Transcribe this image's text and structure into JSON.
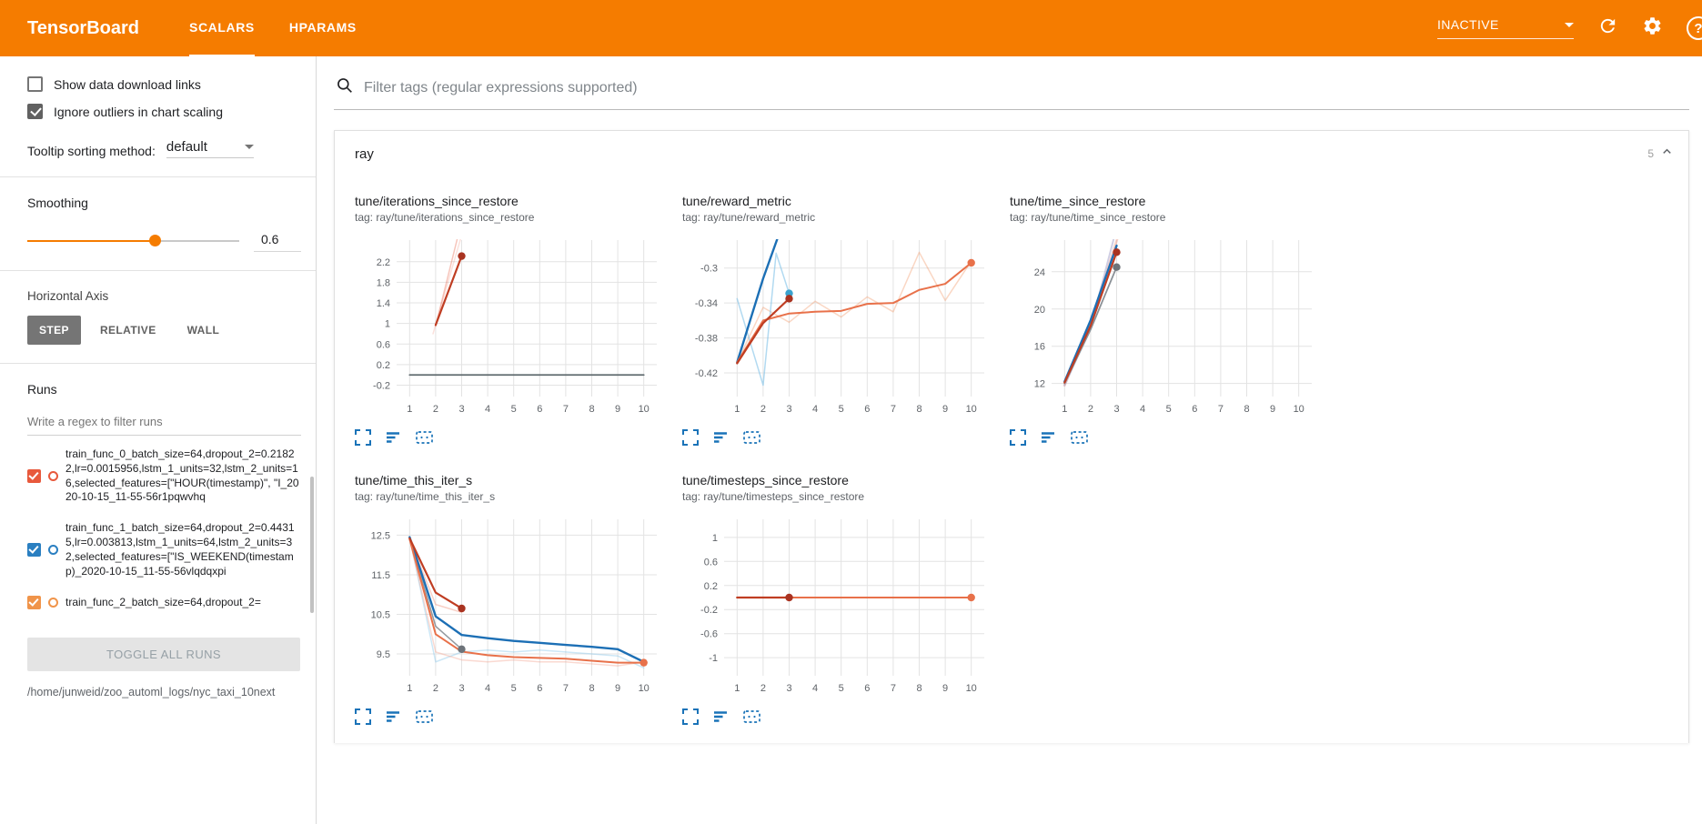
{
  "header": {
    "title": "TensorBoard",
    "tabs": [
      {
        "label": "SCALARS",
        "active": true
      },
      {
        "label": "HPARAMS",
        "active": false
      }
    ],
    "status": "INACTIVE",
    "accent_color": "#f57c00"
  },
  "icons": {
    "search": "magnifier",
    "refresh": "circular-arrow",
    "settings": "gear",
    "help": "question-circle",
    "expand": "fullscreen-corners",
    "run_selector": "three-lines",
    "fit_domain": "dashed-box",
    "collapse": "chevron-up"
  },
  "sidebar": {
    "checkboxes": [
      {
        "label": "Show data download links",
        "checked": false
      },
      {
        "label": "Ignore outliers in chart scaling",
        "checked": true
      }
    ],
    "tooltip_sort": {
      "label": "Tooltip sorting method:",
      "value": "default"
    },
    "smoothing": {
      "label": "Smoothing",
      "value": "0.6",
      "percent": 60
    },
    "horizontal_axis": {
      "label": "Horizontal Axis",
      "options": [
        "STEP",
        "RELATIVE",
        "WALL"
      ],
      "selected": "STEP"
    },
    "runs": {
      "label": "Runs",
      "filter_placeholder": "Write a regex to filter runs",
      "items": [
        {
          "label": "train_func_0_batch_size=64,dropout_2=0.21822,lr=0.0015956,lstm_1_units=32,lstm_2_units=16,selected_features=[\"HOUR(timestamp)\", \"I_2020-10-15_11-55-56r1pqwvhq",
          "checked": true,
          "color": "#e8593c"
        },
        {
          "label": "train_func_1_batch_size=64,dropout_2=0.44315,lr=0.003813,lstm_1_units=64,lstm_2_units=32,selected_features=[\"IS_WEEKEND(timestamp)_2020-10-15_11-55-56vlqdqxpi",
          "checked": true,
          "color": "#2a7fc1"
        },
        {
          "label": "train_func_2_batch_size=64,dropout_2=",
          "checked": true,
          "color": "#f0944a"
        }
      ],
      "toggle_all_label": "TOGGLE ALL RUNS",
      "logdir": "/home/junweid/zoo_automl_logs/nyc_taxi_10next"
    }
  },
  "main": {
    "filter_placeholder": "Filter tags (regular expressions supported)",
    "section": {
      "name": "ray",
      "count": "5"
    }
  },
  "chart_data": [
    {
      "title": "tune/iterations_since_restore",
      "tag": "tag: ray/tune/iterations_since_restore",
      "type": "line",
      "xlim": [
        0.5,
        10.5
      ],
      "ylim": [
        -0.42,
        2.62
      ],
      "xticks": [
        1,
        2,
        3,
        4,
        5,
        6,
        7,
        8,
        9,
        10
      ],
      "yticks": [
        -0.2,
        0.2,
        0.6,
        1,
        1.4,
        1.8,
        2.2
      ],
      "series": [
        {
          "name": "gray-constant",
          "color": "#5f6a6e",
          "width": 1.8,
          "x": [
            1,
            10
          ],
          "y": [
            0,
            0
          ]
        },
        {
          "name": "run0-raw",
          "color": "#e8593c",
          "opacity": 0.35,
          "width": 1.5,
          "x": [
            2,
            3.25
          ],
          "y": [
            0.95,
            3.5
          ]
        },
        {
          "name": "run0-raw-b",
          "color": "#e8593c",
          "opacity": 0.18,
          "width": 1.5,
          "x": [
            1.9,
            3.45
          ],
          "y": [
            0.8,
            3.5
          ]
        },
        {
          "name": "run0-smoothed",
          "color": "#bf3d22",
          "width": 2.2,
          "x": [
            2,
            3
          ],
          "y": [
            0.97,
            2.31
          ],
          "markers": [
            [
              3,
              2.31
            ]
          ],
          "markerColor": "#a93321"
        }
      ]
    },
    {
      "title": "tune/reward_metric",
      "tag": "tag: ray/tune/reward_metric",
      "type": "line",
      "xlim": [
        0.5,
        10.5
      ],
      "ylim": [
        -0.447,
        -0.268
      ],
      "xticks": [
        1,
        2,
        3,
        4,
        5,
        6,
        7,
        8,
        9,
        10
      ],
      "yticks": [
        -0.42,
        -0.38,
        -0.34,
        -0.3
      ],
      "series": [
        {
          "name": "run2-raw",
          "color": "#f28b57",
          "opacity": 0.35,
          "width": 1.5,
          "x": [
            1,
            2,
            3,
            4,
            5,
            6,
            7,
            8,
            9,
            10
          ],
          "y": [
            -0.408,
            -0.345,
            -0.362,
            -0.338,
            -0.356,
            -0.333,
            -0.35,
            -0.282,
            -0.337,
            -0.292
          ]
        },
        {
          "name": "run1-raw",
          "color": "#7fc2e8",
          "opacity": 0.6,
          "width": 1.5,
          "x": [
            1,
            2,
            2.5,
            3
          ],
          "y": [
            -0.335,
            -0.434,
            -0.283,
            -0.329
          ],
          "markers": [
            [
              3,
              -0.329
            ]
          ],
          "markerColor": "#3aa3cf"
        },
        {
          "name": "run1-smoothed",
          "color": "#1c6fb5",
          "width": 2.4,
          "x": [
            1,
            2,
            2.6
          ],
          "y": [
            -0.408,
            -0.312,
            -0.262
          ]
        },
        {
          "name": "run2-smoothed",
          "color": "#e8714a",
          "width": 2,
          "x": [
            1,
            2,
            3,
            4,
            5,
            6,
            7,
            8,
            9,
            10
          ],
          "y": [
            -0.408,
            -0.36,
            -0.352,
            -0.35,
            -0.349,
            -0.341,
            -0.34,
            -0.325,
            -0.318,
            -0.294
          ],
          "markers": [
            [
              10,
              -0.294
            ]
          ]
        },
        {
          "name": "run0-smoothed",
          "color": "#bf3d22",
          "width": 2.2,
          "x": [
            1,
            2,
            3
          ],
          "y": [
            -0.409,
            -0.363,
            -0.335
          ],
          "markers": [
            [
              3,
              -0.335
            ]
          ],
          "markerColor": "#a93321"
        }
      ]
    },
    {
      "title": "tune/time_since_restore",
      "tag": "tag: ray/tune/time_since_restore",
      "type": "line",
      "xlim": [
        0.5,
        10.5
      ],
      "ylim": [
        10.6,
        27.4
      ],
      "xticks": [
        1,
        2,
        3,
        4,
        5,
        6,
        7,
        8,
        9,
        10
      ],
      "yticks": [
        12,
        16,
        20,
        24
      ],
      "series": [
        {
          "name": "run0-raw",
          "color": "#f2a08c",
          "opacity": 0.5,
          "width": 2.6,
          "x": [
            1,
            2,
            3.1
          ],
          "y": [
            11.8,
            18.5,
            28.2
          ]
        },
        {
          "name": "lavender-raw",
          "color": "#b0aed0",
          "opacity": 0.6,
          "width": 2,
          "x": [
            1,
            2,
            2.95
          ],
          "y": [
            11.8,
            18,
            28.2
          ]
        },
        {
          "name": "gray-run",
          "color": "#8a9096",
          "width": 1.8,
          "x": [
            1,
            2,
            3
          ],
          "y": [
            12,
            17.8,
            24.5
          ],
          "markers": [
            [
              3,
              24.5
            ]
          ],
          "markerColor": "#6d7379"
        },
        {
          "name": "run1-smoothed",
          "color": "#1c6fb5",
          "width": 2.4,
          "x": [
            1,
            2,
            3
          ],
          "y": [
            12.2,
            18.8,
            26.8
          ]
        },
        {
          "name": "run0-smoothed",
          "color": "#bf3d22",
          "width": 2.2,
          "x": [
            1,
            2,
            3
          ],
          "y": [
            12.1,
            18.2,
            26.1
          ],
          "markers": [
            [
              3,
              26.1
            ]
          ],
          "markerColor": "#a93321"
        }
      ]
    },
    {
      "title": "tune/time_this_iter_s",
      "tag": "tag: ray/tune/time_this_iter_s",
      "type": "line",
      "xlim": [
        0.5,
        10.5
      ],
      "ylim": [
        8.95,
        12.9
      ],
      "xticks": [
        1,
        2,
        3,
        4,
        5,
        6,
        7,
        8,
        9,
        10
      ],
      "yticks": [
        9.5,
        10.5,
        11.5,
        12.5
      ],
      "series": [
        {
          "name": "run1-raw",
          "color": "#7fc2e8",
          "opacity": 0.4,
          "width": 1.5,
          "x": [
            1,
            2,
            3,
            4,
            5,
            6,
            7,
            8,
            9,
            10
          ],
          "y": [
            12.45,
            9.3,
            9.55,
            9.6,
            9.55,
            9.6,
            9.55,
            9.5,
            9.45,
            9.15
          ]
        },
        {
          "name": "run2-raw",
          "color": "#f2a08c",
          "opacity": 0.4,
          "width": 1.5,
          "x": [
            1,
            2,
            3,
            4,
            5,
            6,
            7,
            8,
            9,
            10
          ],
          "y": [
            12.4,
            9.55,
            9.35,
            9.3,
            9.35,
            9.3,
            9.3,
            9.25,
            9.2,
            9.3
          ]
        },
        {
          "name": "run0-raw",
          "color": "#f2a08c",
          "opacity": 0.5,
          "width": 1.5,
          "x": [
            1,
            2,
            3
          ],
          "y": [
            12.4,
            10.75,
            10.55
          ]
        },
        {
          "name": "gray-run",
          "color": "#8a9096",
          "width": 1.6,
          "opacity": 0.9,
          "x": [
            1,
            2,
            3
          ],
          "y": [
            12.42,
            10.2,
            9.62
          ],
          "markers": [
            [
              3,
              9.62
            ]
          ],
          "markerColor": "#6d7379"
        },
        {
          "name": "run1-smoothed",
          "color": "#1c6fb5",
          "width": 2.4,
          "x": [
            1,
            2,
            3,
            4,
            5,
            6,
            7,
            8,
            9,
            10
          ],
          "y": [
            12.45,
            10.45,
            9.98,
            9.9,
            9.83,
            9.78,
            9.73,
            9.68,
            9.62,
            9.3
          ]
        },
        {
          "name": "run2-smoothed",
          "color": "#e8714a",
          "width": 2,
          "x": [
            1,
            2,
            3,
            4,
            5,
            6,
            7,
            8,
            9,
            10
          ],
          "y": [
            12.4,
            10,
            9.56,
            9.47,
            9.42,
            9.4,
            9.38,
            9.33,
            9.28,
            9.28
          ],
          "markers": [
            [
              10,
              9.28
            ]
          ]
        },
        {
          "name": "run0-smoothed",
          "color": "#bf3d22",
          "width": 2.2,
          "x": [
            1,
            2,
            3
          ],
          "y": [
            12.42,
            11.05,
            10.65
          ],
          "markers": [
            [
              3,
              10.65
            ]
          ],
          "markerColor": "#a93321"
        }
      ]
    },
    {
      "title": "tune/timesteps_since_restore",
      "tag": "tag: ray/tune/timesteps_since_restore",
      "type": "line",
      "xlim": [
        0.5,
        10.5
      ],
      "ylim": [
        -1.3,
        1.3
      ],
      "xticks": [
        1,
        2,
        3,
        4,
        5,
        6,
        7,
        8,
        9,
        10
      ],
      "yticks": [
        -1,
        -0.6,
        -0.2,
        0.2,
        0.6,
        1
      ],
      "series": [
        {
          "name": "gray-constant",
          "color": "#8a9096",
          "width": 1.6,
          "x": [
            1,
            10
          ],
          "y": [
            0,
            0
          ]
        },
        {
          "name": "run2-smoothed",
          "color": "#e8714a",
          "width": 2,
          "x": [
            1,
            10
          ],
          "y": [
            0,
            0
          ],
          "markers": [
            [
              10,
              0
            ]
          ]
        },
        {
          "name": "run0-smoothed",
          "color": "#bf3d22",
          "width": 2.2,
          "x": [
            1,
            3
          ],
          "y": [
            0,
            0
          ],
          "markers": [
            [
              3,
              0
            ]
          ],
          "markerColor": "#a93321"
        }
      ]
    }
  ]
}
